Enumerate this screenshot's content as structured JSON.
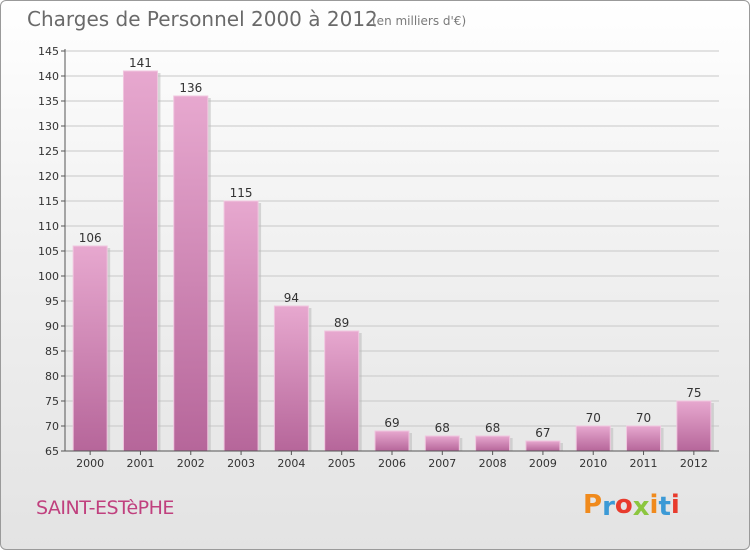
{
  "header": {
    "title": "Charges de Personnel 2000 à 2012",
    "subtitle": "(en milliers d'€)"
  },
  "footer": {
    "commune": "SAINT-ESTèPHE",
    "logo": "Proxiti",
    "logo_colors": [
      "#f08a1c",
      "#3c9ad6",
      "#e83b2d",
      "#8cc63f",
      "#f08a1c",
      "#3c9ad6",
      "#e83b2d"
    ]
  },
  "colors": {
    "bar_light": "#e7a8cf",
    "bar_dark": "#b6669a",
    "axis": "#555555",
    "grid": "#c8c8c8"
  },
  "chart_data": {
    "type": "bar",
    "title": "Charges de Personnel 2000 à 2012",
    "subtitle": "(en milliers d'€)",
    "categories": [
      "2000",
      "2001",
      "2002",
      "2003",
      "2004",
      "2005",
      "2006",
      "2007",
      "2008",
      "2009",
      "2010",
      "2011",
      "2012"
    ],
    "values": [
      106,
      141,
      136,
      115,
      94,
      89,
      69,
      68,
      68,
      67,
      70,
      70,
      75
    ],
    "ylim": [
      65,
      145
    ],
    "yticks": [
      65,
      70,
      75,
      80,
      85,
      90,
      95,
      100,
      105,
      110,
      115,
      120,
      125,
      130,
      135,
      140,
      145
    ],
    "grid": true,
    "legend": "none"
  }
}
